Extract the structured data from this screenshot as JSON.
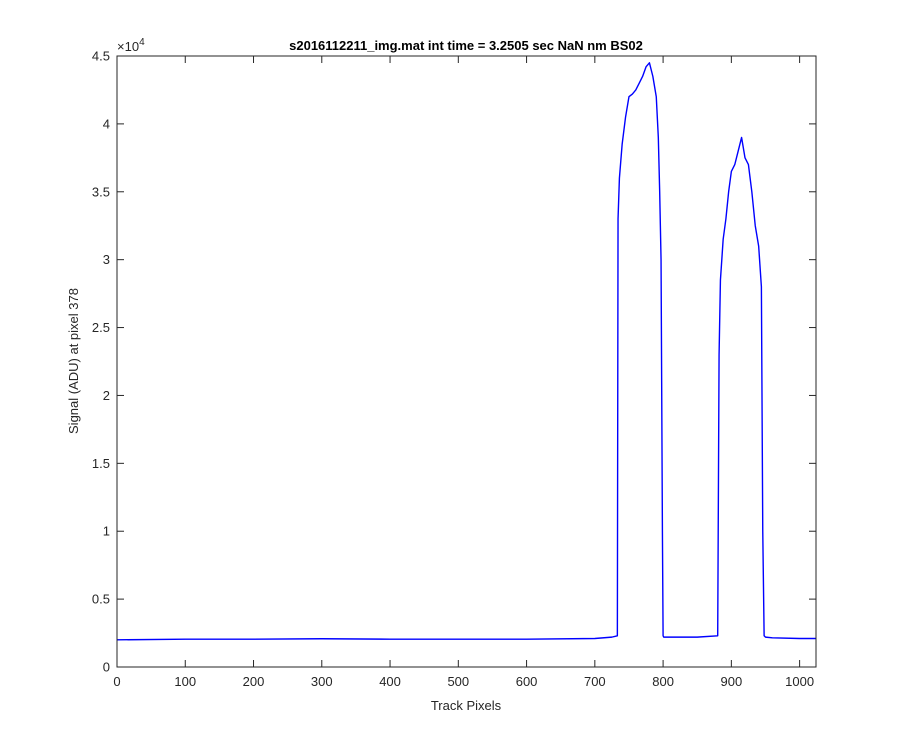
{
  "chart_data": {
    "type": "line",
    "title": "s2016112211_img.mat int time = 3.2505 sec  NaN nm BS02",
    "xlabel": "Track Pixels",
    "ylabel": "Signal (ADU) at pixel 378",
    "xlim": [
      0,
      1024
    ],
    "ylim": [
      0,
      45000
    ],
    "xticks": [
      0,
      100,
      200,
      300,
      400,
      500,
      600,
      700,
      800,
      900,
      1000
    ],
    "xtick_labels": [
      "0",
      "100",
      "200",
      "300",
      "400",
      "500",
      "600",
      "700",
      "800",
      "900",
      "1000"
    ],
    "yticks": [
      0,
      5000,
      10000,
      15000,
      20000,
      25000,
      30000,
      35000,
      40000,
      45000
    ],
    "ytick_labels": [
      "0",
      "0.5",
      "1",
      "1.5",
      "2",
      "2.5",
      "3",
      "3.5",
      "4",
      "4.5"
    ],
    "y_exponent_base": "×10",
    "y_exponent_power": "4",
    "grid": false,
    "box": true,
    "series": [
      {
        "color": "#0000ff",
        "x": [
          0,
          100,
          200,
          300,
          400,
          500,
          600,
          700,
          725,
          733,
          734,
          736,
          740,
          745,
          750,
          755,
          760,
          765,
          770,
          775,
          780,
          785,
          790,
          793,
          795,
          797,
          799,
          800,
          801,
          810,
          850,
          880,
          882,
          884,
          886,
          888,
          892,
          896,
          900,
          905,
          910,
          915,
          920,
          925,
          930,
          935,
          940,
          944,
          946,
          948,
          950,
          960,
          1000,
          1024
        ],
        "y": [
          2000,
          2050,
          2050,
          2080,
          2050,
          2050,
          2050,
          2100,
          2200,
          2300,
          33000,
          36000,
          38500,
          40500,
          42000,
          42200,
          42500,
          43000,
          43500,
          44200,
          44500,
          43500,
          42000,
          39000,
          35000,
          30000,
          10000,
          2300,
          2200,
          2200,
          2200,
          2300,
          23000,
          28500,
          30000,
          31500,
          33000,
          35000,
          36500,
          37000,
          38000,
          39000,
          37500,
          37000,
          35000,
          32500,
          31000,
          28000,
          10000,
          2300,
          2200,
          2150,
          2100,
          2100
        ]
      }
    ]
  }
}
